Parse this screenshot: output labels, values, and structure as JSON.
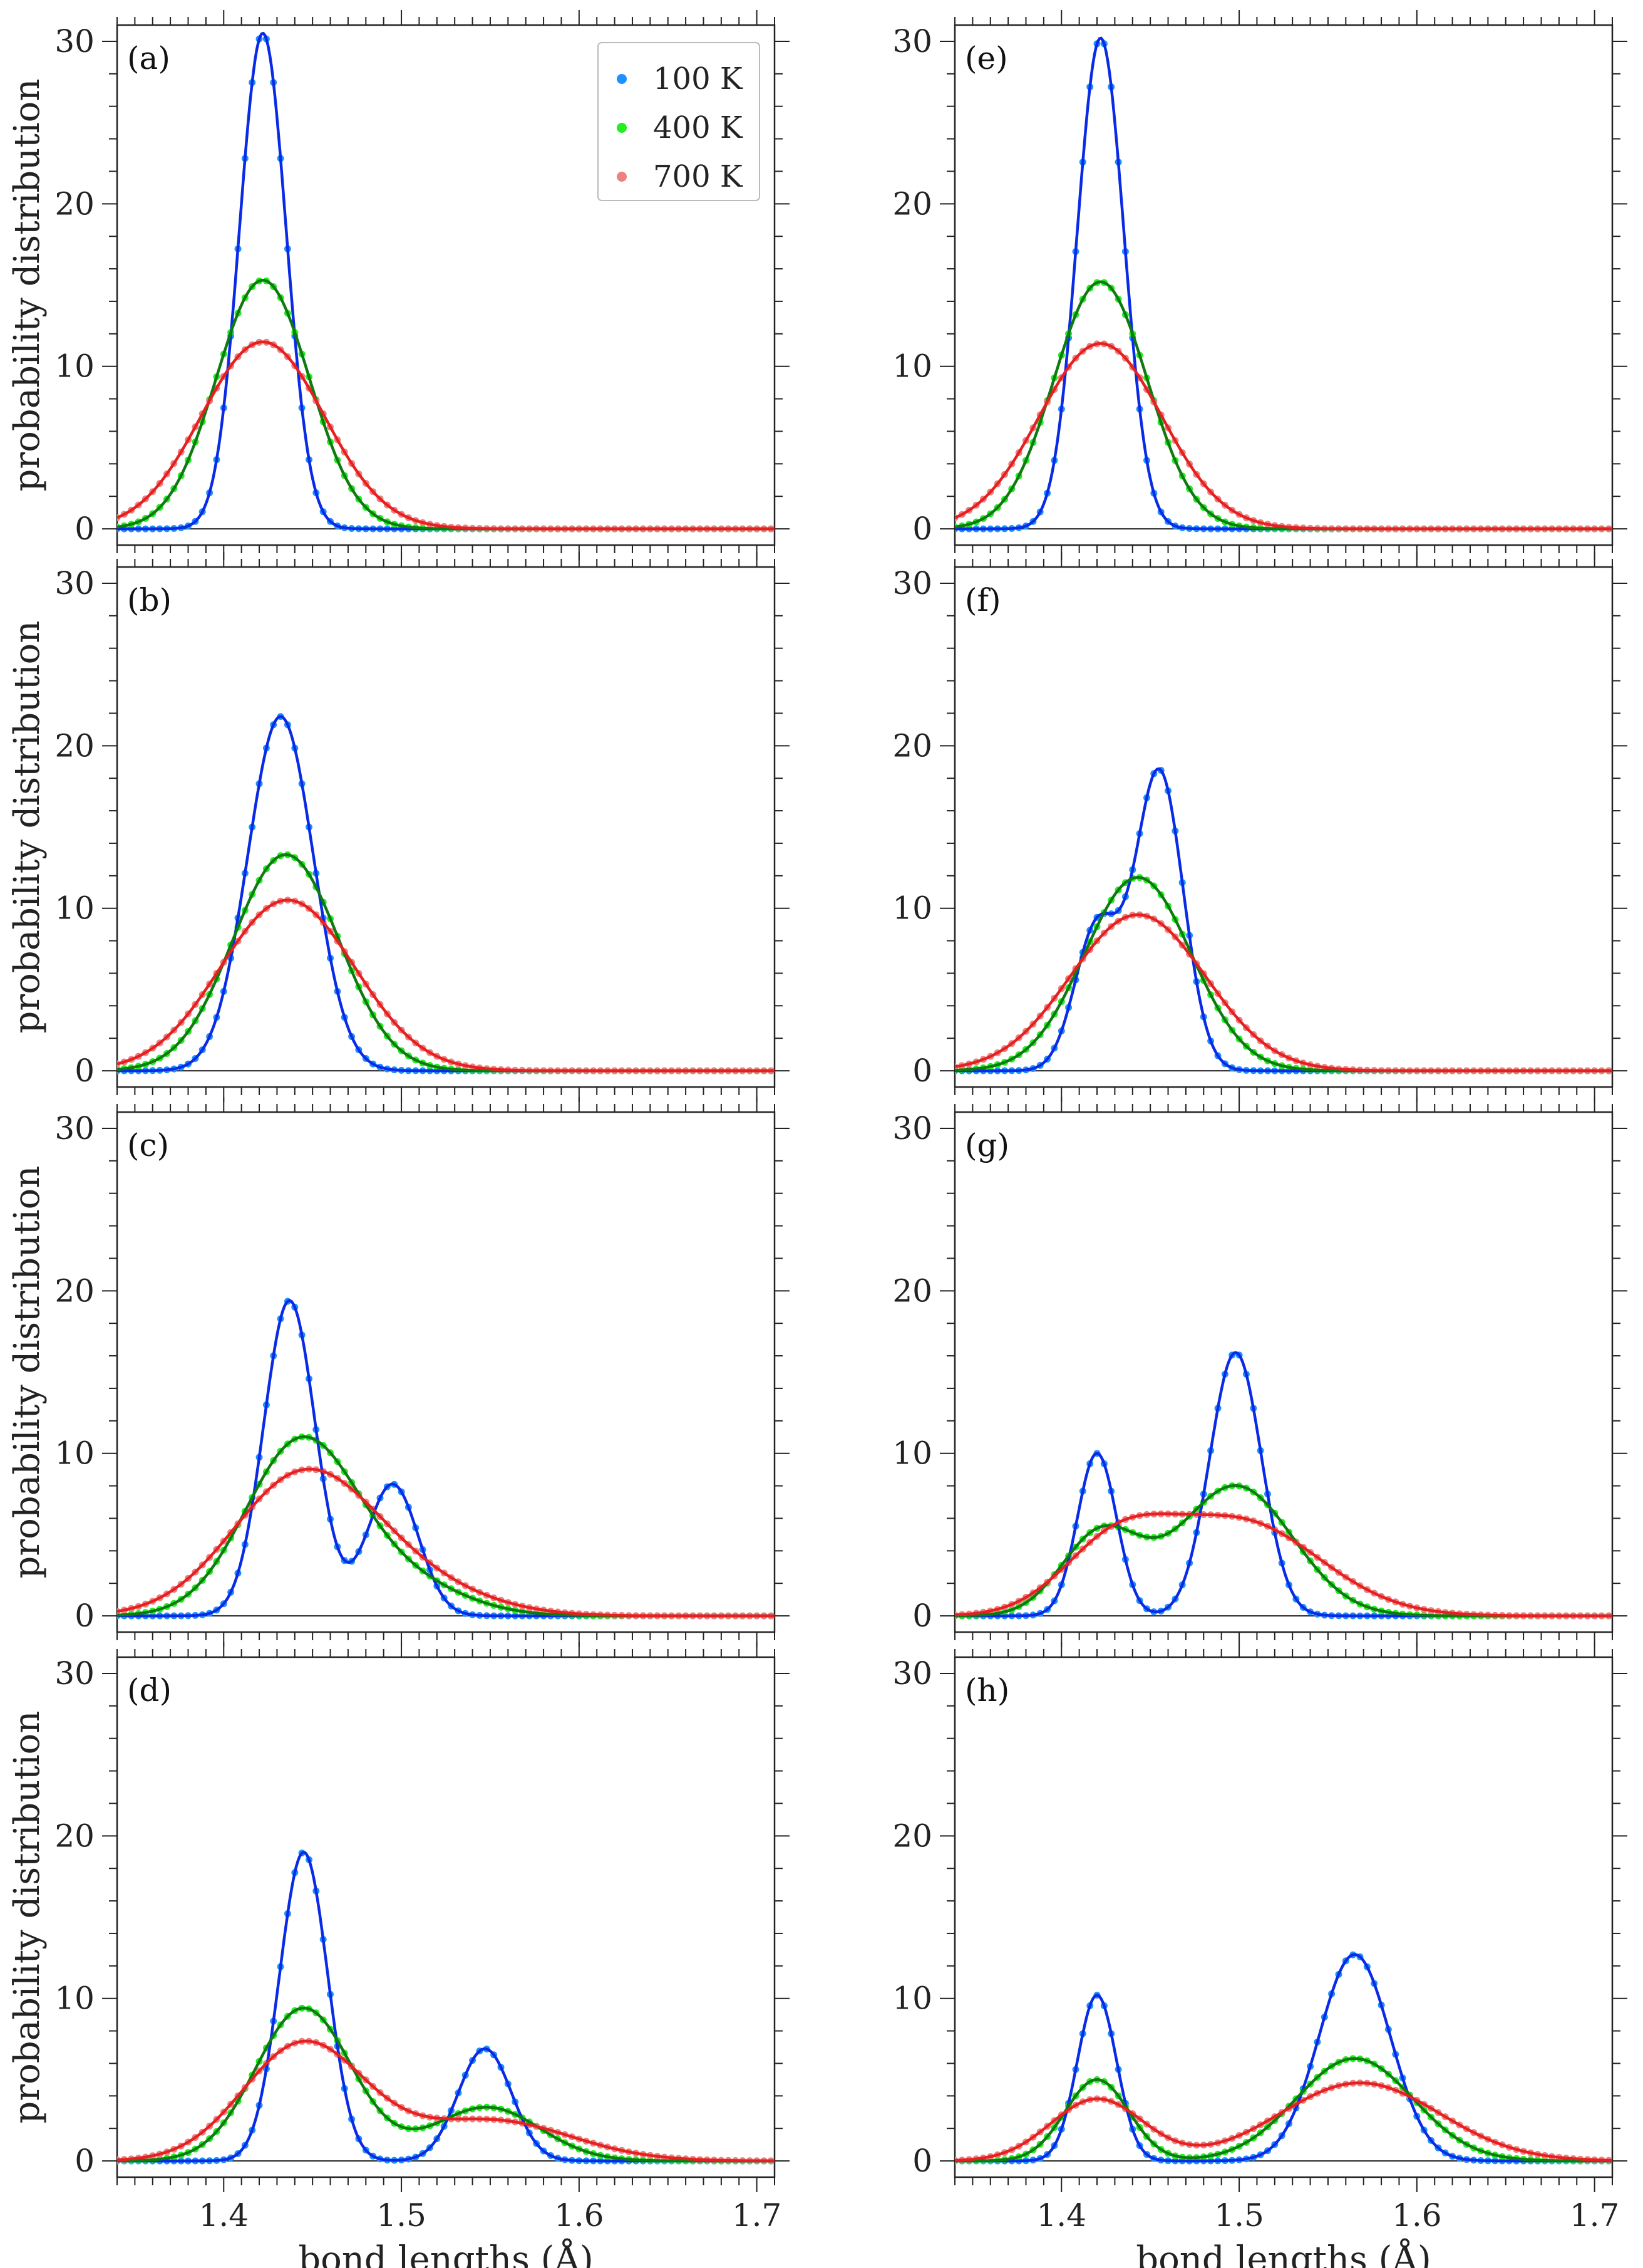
{
  "figure": {
    "xlabel": "bond lengths (Å)",
    "ylabel": "probability distribution",
    "legend": [
      {
        "label": "100 K",
        "dot_color": "#1e90ff",
        "line_color": "#0a2be6"
      },
      {
        "label": "400 K",
        "dot_color": "#22ee22",
        "line_color": "#0f7a0f"
      },
      {
        "label": "700 K",
        "dot_color": "#ee8080",
        "line_color": "#e62020"
      }
    ],
    "x_ticks": [
      "1.4",
      "1.5",
      "1.6",
      "1.7"
    ],
    "y_ticks": [
      "0",
      "10",
      "20",
      "30"
    ]
  },
  "chart_data": [
    {
      "id": "a",
      "label": "(a)",
      "type": "line",
      "xlim": [
        1.34,
        1.71
      ],
      "ylim": [
        -1,
        31
      ],
      "xlabel": "",
      "ylabel": "probability distribution",
      "legend": true,
      "series": [
        {
          "name": "100 K",
          "peaks": [
            {
              "mu": 1.422,
              "sigma": 0.0131,
              "height": 30.5
            }
          ]
        },
        {
          "name": "400 K",
          "peaks": [
            {
              "mu": 1.422,
              "sigma": 0.0262,
              "height": 15.3
            }
          ]
        },
        {
          "name": "700 K",
          "peaks": [
            {
              "mu": 1.422,
              "sigma": 0.0345,
              "height": 11.5
            }
          ]
        }
      ]
    },
    {
      "id": "b",
      "label": "(b)",
      "type": "line",
      "xlim": [
        1.34,
        1.71
      ],
      "ylim": [
        -1,
        31
      ],
      "xlabel": "",
      "ylabel": "probability distribution",
      "legend": false,
      "series": [
        {
          "name": "100 K",
          "peaks": [
            {
              "mu": 1.432,
              "sigma": 0.0185,
              "height": 21.8
            }
          ]
        },
        {
          "name": "400 K",
          "peaks": [
            {
              "mu": 1.435,
              "sigma": 0.0298,
              "height": 13.3
            }
          ]
        },
        {
          "name": "700 K",
          "peaks": [
            {
              "mu": 1.436,
              "sigma": 0.0378,
              "height": 10.5
            }
          ]
        }
      ]
    },
    {
      "id": "c",
      "label": "(c)",
      "type": "line",
      "xlim": [
        1.34,
        1.71
      ],
      "ylim": [
        -1,
        31
      ],
      "xlabel": "",
      "ylabel": "probability distribution",
      "legend": false,
      "series": [
        {
          "name": "100 K",
          "peaks": [
            {
              "mu": 1.437,
              "sigma": 0.0145,
              "height": 19.4
            },
            {
              "mu": 1.495,
              "sigma": 0.0145,
              "height": 8.1
            }
          ]
        },
        {
          "name": "400 K",
          "peaks": [
            {
              "mu": 1.443,
              "sigma": 0.031,
              "height": 10.5
            },
            {
              "mu": 1.5,
              "sigma": 0.034,
              "height": 2.0
            }
          ]
        },
        {
          "name": "700 K",
          "peaks": [
            {
              "mu": 1.445,
              "sigma": 0.04,
              "height": 8.6
            },
            {
              "mu": 1.51,
              "sigma": 0.04,
              "height": 1.5
            }
          ]
        }
      ]
    },
    {
      "id": "d",
      "label": "(d)",
      "type": "line",
      "xlim": [
        1.34,
        1.71
      ],
      "ylim": [
        -1,
        31
      ],
      "xlabel": "bond lengths (Å)",
      "ylabel": "probability distribution",
      "legend": false,
      "series": [
        {
          "name": "100 K",
          "peaks": [
            {
              "mu": 1.445,
              "sigma": 0.0135,
              "height": 19.0
            },
            {
              "mu": 1.547,
              "sigma": 0.015,
              "height": 6.9
            }
          ]
        },
        {
          "name": "400 K",
          "peaks": [
            {
              "mu": 1.445,
              "sigma": 0.027,
              "height": 9.4
            },
            {
              "mu": 1.548,
              "sigma": 0.03,
              "height": 3.3
            }
          ]
        },
        {
          "name": "700 K",
          "peaks": [
            {
              "mu": 1.445,
              "sigma": 0.034,
              "height": 7.2
            },
            {
              "mu": 1.55,
              "sigma": 0.045,
              "height": 2.5
            }
          ]
        }
      ]
    },
    {
      "id": "e",
      "label": "(e)",
      "type": "line",
      "xlim": [
        1.34,
        1.71
      ],
      "ylim": [
        -1,
        31
      ],
      "xlabel": "",
      "ylabel": "",
      "legend": false,
      "series": [
        {
          "name": "100 K",
          "peaks": [
            {
              "mu": 1.422,
              "sigma": 0.0131,
              "height": 30.2
            }
          ]
        },
        {
          "name": "400 K",
          "peaks": [
            {
              "mu": 1.422,
              "sigma": 0.0262,
              "height": 15.2
            }
          ]
        },
        {
          "name": "700 K",
          "peaks": [
            {
              "mu": 1.422,
              "sigma": 0.0345,
              "height": 11.4
            }
          ]
        }
      ]
    },
    {
      "id": "f",
      "label": "(f)",
      "type": "line",
      "xlim": [
        1.34,
        1.71
      ],
      "ylim": [
        -1,
        31
      ],
      "xlabel": "",
      "ylabel": "",
      "legend": false,
      "series": [
        {
          "name": "100 K",
          "peaks": [
            {
              "mu": 1.42,
              "sigma": 0.0125,
              "height": 8.8
            },
            {
              "mu": 1.455,
              "sigma": 0.0135,
              "height": 18.4
            }
          ]
        },
        {
          "name": "400 K",
          "peaks": [
            {
              "mu": 1.443,
              "sigma": 0.03,
              "height": 11.9
            }
          ]
        },
        {
          "name": "700 K",
          "peaks": [
            {
              "mu": 1.443,
              "sigma": 0.038,
              "height": 9.6
            }
          ]
        }
      ]
    },
    {
      "id": "g",
      "label": "(g)",
      "type": "line",
      "xlim": [
        1.34,
        1.71
      ],
      "ylim": [
        -1,
        31
      ],
      "xlabel": "",
      "ylabel": "",
      "legend": false,
      "series": [
        {
          "name": "100 K",
          "peaks": [
            {
              "mu": 1.42,
              "sigma": 0.011,
              "height": 10.0
            },
            {
              "mu": 1.498,
              "sigma": 0.0145,
              "height": 16.2
            }
          ]
        },
        {
          "name": "400 K",
          "peaks": [
            {
              "mu": 1.422,
              "sigma": 0.022,
              "height": 5.0
            },
            {
              "mu": 1.498,
              "sigma": 0.032,
              "height": 8.0
            }
          ]
        },
        {
          "name": "700 K",
          "peaks": [
            {
              "mu": 1.43,
              "sigma": 0.03,
              "height": 3.9
            },
            {
              "mu": 1.5,
              "sigma": 0.045,
              "height": 5.8
            }
          ]
        }
      ]
    },
    {
      "id": "h",
      "label": "(h)",
      "type": "line",
      "xlim": [
        1.34,
        1.71
      ],
      "ylim": [
        -1,
        31
      ],
      "xlabel": "bond lengths (Å)",
      "ylabel": "",
      "legend": false,
      "series": [
        {
          "name": "100 K",
          "peaks": [
            {
              "mu": 1.42,
              "sigma": 0.011,
              "height": 10.2
            },
            {
              "mu": 1.565,
              "sigma": 0.02,
              "height": 12.7
            }
          ]
        },
        {
          "name": "400 K",
          "peaks": [
            {
              "mu": 1.42,
              "sigma": 0.018,
              "height": 5.0
            },
            {
              "mu": 1.565,
              "sigma": 0.033,
              "height": 6.3
            }
          ]
        },
        {
          "name": "700 K",
          "peaks": [
            {
              "mu": 1.42,
              "sigma": 0.026,
              "height": 3.8
            },
            {
              "mu": 1.568,
              "sigma": 0.045,
              "height": 4.8
            }
          ]
        }
      ]
    }
  ]
}
